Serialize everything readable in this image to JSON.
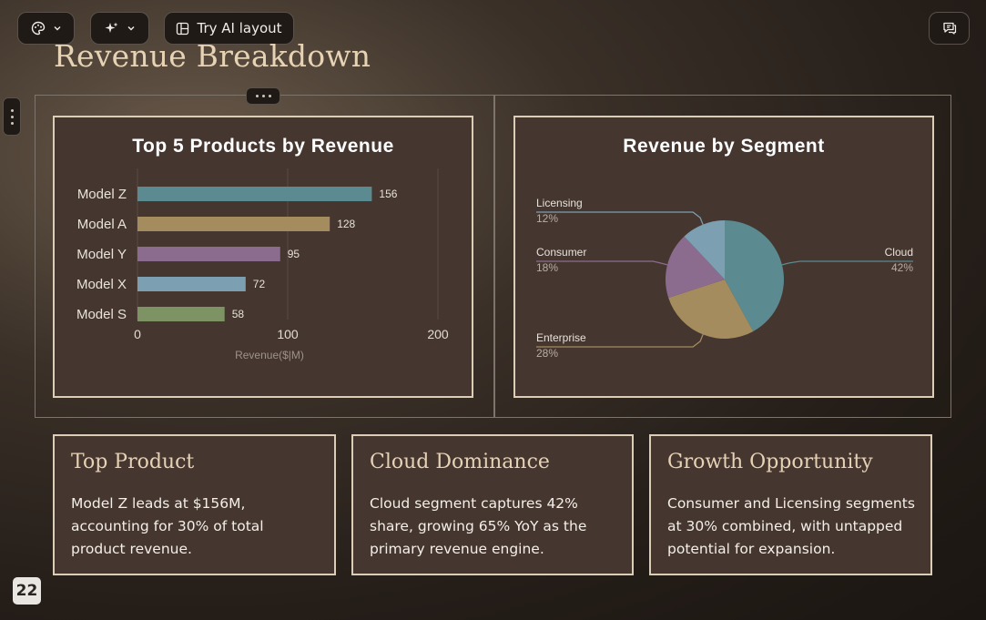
{
  "toolbar": {
    "palette_icon": "palette-icon",
    "ai_icon": "sparkles-icon",
    "layout_icon": "layout-icon",
    "try_ai_label": "Try AI layout",
    "comment_icon": "comment-icon"
  },
  "slide": {
    "title": "Revenue Breakdown",
    "page_number": "22"
  },
  "chart_data": [
    {
      "type": "bar",
      "orientation": "horizontal",
      "title": "Top 5 Products by Revenue",
      "categories": [
        "Model Z",
        "Model A",
        "Model Y",
        "Model X",
        "Model S"
      ],
      "values": [
        156,
        128,
        95,
        72,
        58
      ],
      "value_labels": [
        "156",
        "128",
        "95",
        "72",
        "58"
      ],
      "colors": [
        "#5b8a91",
        "#a58c5e",
        "#8c6c8e",
        "#7c9fb2",
        "#7d9363"
      ],
      "xlabel": "Revenue($|M)",
      "xlim": [
        0,
        200
      ],
      "xticks": [
        "0",
        "100",
        "200"
      ],
      "grid": true
    },
    {
      "type": "pie",
      "title": "Revenue by Segment",
      "labels": [
        "Cloud",
        "Enterprise",
        "Consumer",
        "Licensing"
      ],
      "values": [
        42,
        28,
        18,
        12
      ],
      "percent_labels": [
        "42%",
        "28%",
        "18%",
        "12%"
      ],
      "colors": [
        "#5b8a91",
        "#a58c5e",
        "#8c6c8e",
        "#7c9fb2"
      ]
    }
  ],
  "insights": [
    {
      "title": "Top Product",
      "text": "Model Z leads at $156M, accounting for 30% of total product revenue."
    },
    {
      "title": "Cloud Dominance",
      "text": "Cloud segment captures 42% share, growing 65% YoY as the primary revenue engine."
    },
    {
      "title": "Growth Opportunity",
      "text": "Consumer and Licensing segments at 30% combined, with untapped potential for expansion."
    }
  ]
}
